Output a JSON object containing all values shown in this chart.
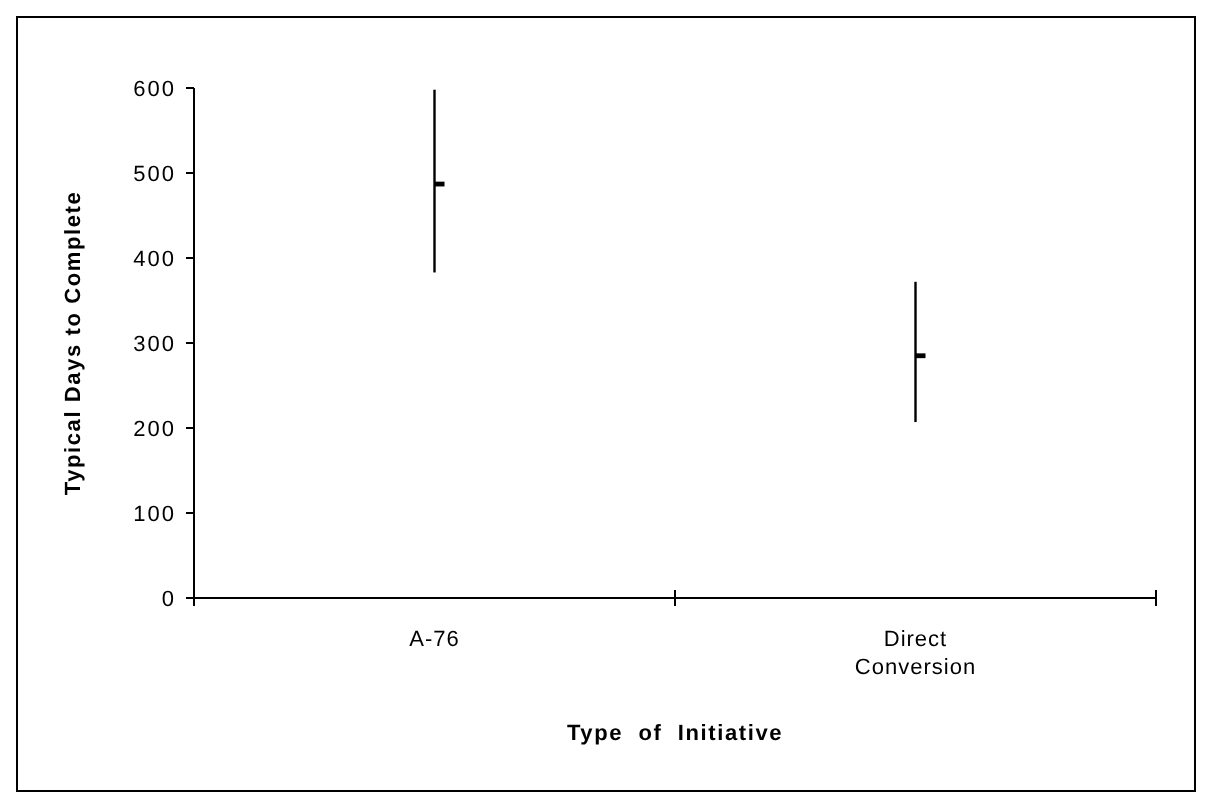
{
  "chart_data": {
    "type": "scatter",
    "xlabel": "Type  of  Initiative",
    "ylabel": "Typical Days to Complete",
    "categories": [
      "A-76",
      "Direct Conversion"
    ],
    "values": [
      487,
      285
    ],
    "errors": [
      [
        383,
        598
      ],
      [
        207,
        372
      ]
    ],
    "color": "#000000",
    "ylim": [
      0,
      600
    ],
    "yticks": [
      0,
      100,
      200,
      300,
      400,
      500,
      600
    ],
    "grid": false
  }
}
